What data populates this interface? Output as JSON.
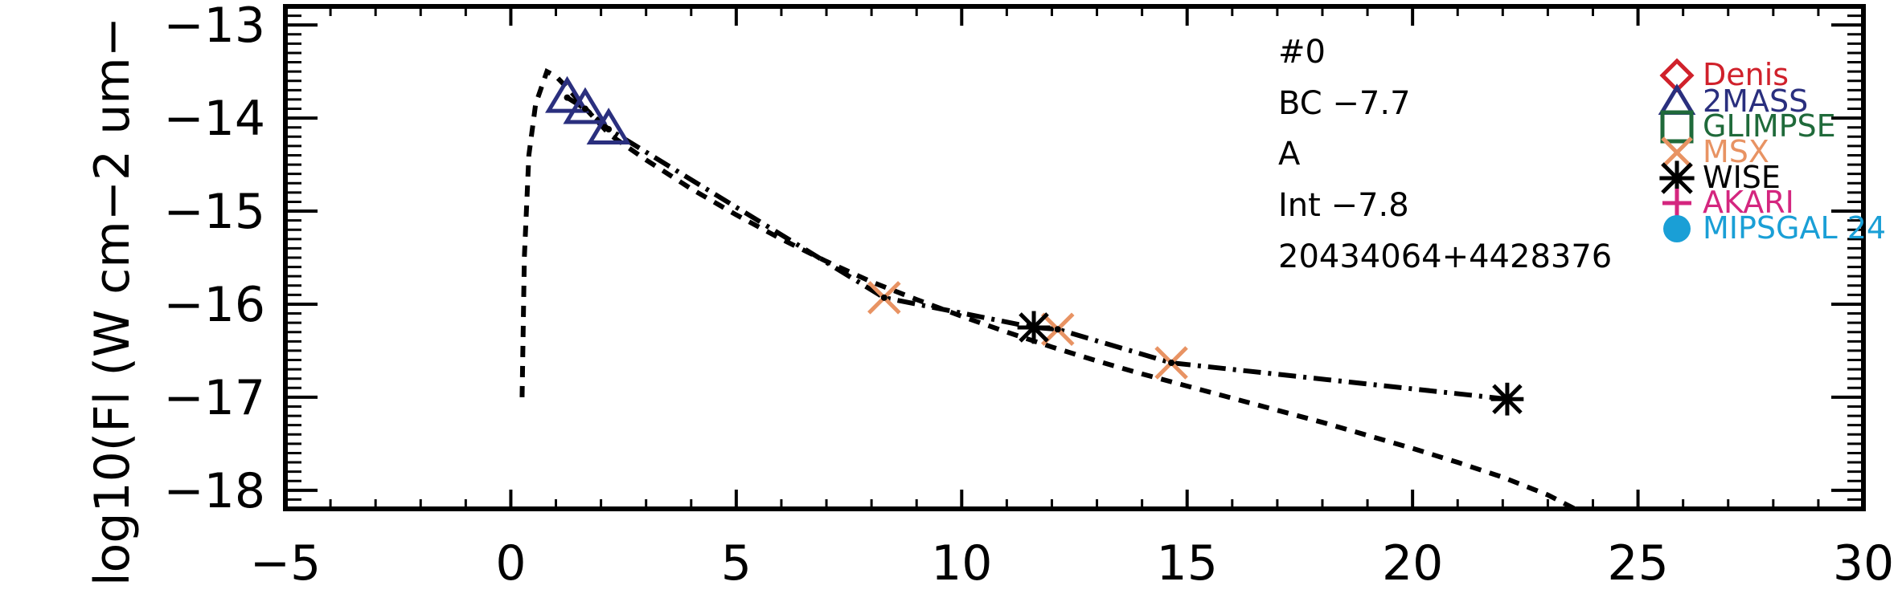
{
  "chart_data": {
    "type": "scatter",
    "title": "",
    "xlabel": "",
    "ylabel": "log10(Fl (W cm−2 um−",
    "xlim": [
      -5,
      30
    ],
    "ylim": [
      -18.2,
      -12.8
    ],
    "x_ticks": [
      -5,
      0,
      5,
      10,
      15,
      20,
      25,
      30
    ],
    "x_tick_labels": [
      "−5",
      "0",
      "5",
      "10",
      "15",
      "20",
      "25",
      "30"
    ],
    "y_ticks": [
      -18,
      -17,
      -16,
      -15,
      -14,
      -13
    ],
    "y_tick_labels": [
      "−18",
      "−17",
      "−16",
      "−15",
      "−14",
      "−13"
    ],
    "grid": false,
    "annotations": [
      "#0",
      "BC  −7.7",
      "A",
      "Int  −7.8",
      "20434064+4428376"
    ],
    "legend_position": "right",
    "legend": [
      {
        "label": "Denis",
        "marker": "diamond",
        "color": "#d0212b"
      },
      {
        "label": "2MASS",
        "marker": "triangle",
        "color": "#2a2f7e"
      },
      {
        "label": "GLIMPSE",
        "marker": "square",
        "color": "#1f6a3a"
      },
      {
        "label": "MSX",
        "marker": "x",
        "color": "#e89363"
      },
      {
        "label": "WISE",
        "marker": "asterisk",
        "color": "#000000"
      },
      {
        "label": "AKARI",
        "marker": "plus",
        "color": "#d4267f"
      },
      {
        "label": "MIPSGAL 24",
        "marker": "circle",
        "color": "#1a9fd6"
      }
    ],
    "series": [
      {
        "source": "2MASS",
        "marker": "triangle",
        "color": "#2a2f7e",
        "x": [
          1.25,
          1.65,
          2.17
        ],
        "y": [
          -13.78,
          -13.9,
          -14.12
        ]
      },
      {
        "source": "MSX",
        "marker": "x",
        "color": "#e89363",
        "x": [
          8.28,
          12.13,
          14.65
        ],
        "y": [
          -15.93,
          -16.27,
          -16.63
        ]
      },
      {
        "source": "WISE",
        "marker": "asterisk",
        "color": "#000000",
        "x": [
          11.6,
          22.1
        ],
        "y": [
          -16.25,
          -17.02
        ]
      },
      {
        "source": "observed-sed",
        "style": "dash-dot",
        "color": "#000000",
        "x": [
          1.25,
          1.65,
          2.17,
          8.28,
          11.6,
          12.13,
          14.65,
          22.1
        ],
        "y": [
          -13.78,
          -13.9,
          -14.12,
          -15.93,
          -16.25,
          -16.27,
          -16.63,
          -17.02
        ]
      },
      {
        "source": "model",
        "style": "dashed",
        "color": "#000000",
        "x": [
          0.25,
          0.3,
          0.4,
          0.55,
          0.8,
          1.0,
          1.3,
          1.7,
          2.2,
          3,
          4,
          5,
          6,
          7,
          8,
          9,
          10,
          11,
          12,
          13,
          14,
          15,
          16,
          17,
          18,
          19,
          20,
          21,
          22,
          23,
          23.6
        ],
        "y": [
          -17.0,
          -15.5,
          -14.4,
          -13.85,
          -13.5,
          -13.55,
          -13.7,
          -13.92,
          -14.18,
          -14.45,
          -14.76,
          -15.04,
          -15.3,
          -15.54,
          -15.76,
          -15.95,
          -16.13,
          -16.3,
          -16.46,
          -16.61,
          -16.75,
          -16.88,
          -17.01,
          -17.14,
          -17.27,
          -17.41,
          -17.55,
          -17.7,
          -17.86,
          -18.05,
          -18.2
        ]
      }
    ]
  }
}
